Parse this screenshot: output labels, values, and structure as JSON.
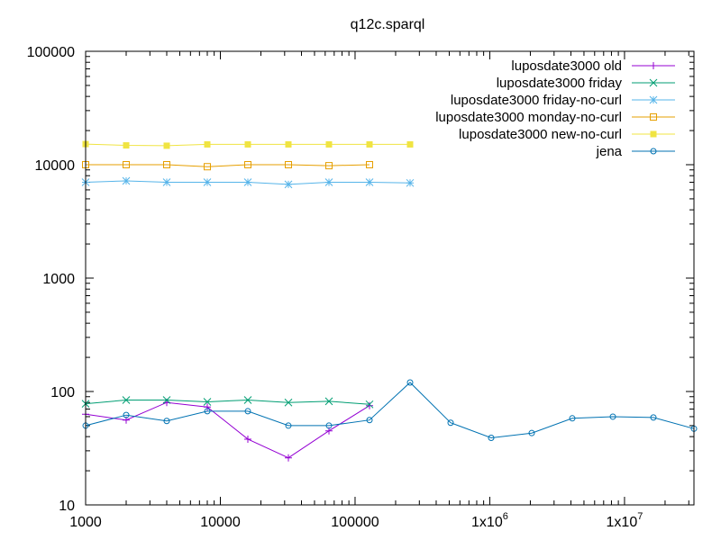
{
  "chart_data": {
    "type": "line",
    "title": "q12c.sparql",
    "xscale": "log",
    "yscale": "log",
    "xlim": [
      1000,
      32768000
    ],
    "ylim": [
      10,
      100000
    ],
    "x_tick_labels": [
      "1000",
      "10000",
      "100000",
      "1x10^6",
      "1x10^7"
    ],
    "y_tick_labels": [
      "10",
      "100",
      "1000",
      "10000",
      "100000"
    ],
    "legend_position": "top-right",
    "series": [
      {
        "name": "luposdate3000 old",
        "color": "#9400d3",
        "marker": "plus",
        "x": [
          1000,
          2000,
          4000,
          8000,
          16000,
          32000,
          64000,
          128000
        ],
        "y": [
          63,
          56,
          80,
          73,
          38,
          26,
          45,
          75
        ]
      },
      {
        "name": "luposdate3000 friday",
        "color": "#009e73",
        "marker": "cross",
        "x": [
          1000,
          2000,
          4000,
          8000,
          16000,
          32000,
          64000,
          128000
        ],
        "y": [
          78,
          84,
          84,
          81,
          84,
          80,
          82,
          77
        ]
      },
      {
        "name": "luposdate3000 friday-no-curl",
        "color": "#56b4e9",
        "marker": "star",
        "x": [
          1000,
          2000,
          4000,
          8000,
          16000,
          32000,
          64000,
          128000,
          256000
        ],
        "y": [
          7000,
          7200,
          7000,
          7000,
          7000,
          6700,
          7000,
          7000,
          6900
        ]
      },
      {
        "name": "luposdate3000 monday-no-curl",
        "color": "#e69f00",
        "marker": "open-square",
        "x": [
          1000,
          2000,
          4000,
          8000,
          16000,
          32000,
          64000,
          128000
        ],
        "y": [
          10000,
          10000,
          10000,
          9600,
          10000,
          10000,
          9800,
          10000
        ]
      },
      {
        "name": "luposdate3000 new-no-curl",
        "color": "#f0e442",
        "marker": "filled-square",
        "x": [
          1000,
          2000,
          4000,
          8000,
          16000,
          32000,
          64000,
          128000,
          256000
        ],
        "y": [
          15200,
          14800,
          14700,
          15100,
          15100,
          15100,
          15100,
          15100,
          15100
        ]
      },
      {
        "name": "jena",
        "color": "#0072b2",
        "marker": "open-circle",
        "x": [
          1000,
          2000,
          4000,
          8000,
          16000,
          32000,
          64000,
          128000,
          256000,
          512000,
          1024000,
          2048000,
          4096000,
          8192000,
          16384000,
          32768000
        ],
        "y": [
          50,
          62,
          55,
          67,
          67,
          50,
          50,
          56,
          120,
          53,
          39,
          43,
          58,
          60,
          59,
          47
        ]
      }
    ]
  }
}
